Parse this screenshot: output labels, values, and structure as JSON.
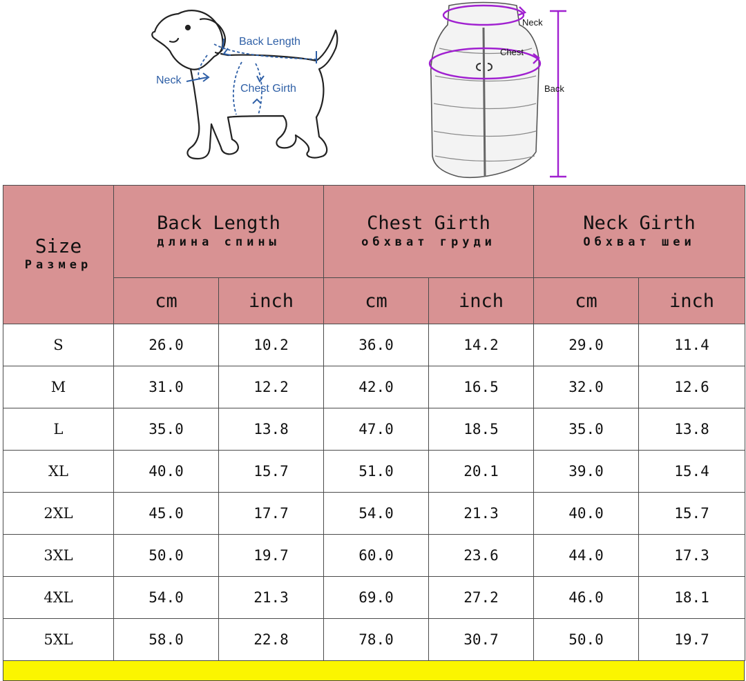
{
  "illustration": {
    "dog_labels": {
      "back_length": "Back Length",
      "neck": "Neck",
      "chest_girth": "Chest Girth"
    },
    "vest_labels": {
      "neck": "Neck",
      "chest": "Chest",
      "back": "Back"
    },
    "dog_arrow_color": "#2e5fa6",
    "vest_arrow_color": "#a020d0"
  },
  "table": {
    "header_color": "#d89293",
    "size_header": {
      "en": "Size",
      "ru": "Размер"
    },
    "groups": [
      {
        "en": "Back Length",
        "ru": "длина спины"
      },
      {
        "en": "Chest Girth",
        "ru": "обхват груди"
      },
      {
        "en": "Neck Girth",
        "ru": "Обхват шеи"
      }
    ],
    "units": [
      "cm",
      "inch",
      "cm",
      "inch",
      "cm",
      "inch"
    ],
    "rows": [
      [
        "S",
        "26.0",
        "10.2",
        "36.0",
        "14.2",
        "29.0",
        "11.4"
      ],
      [
        "M",
        "31.0",
        "12.2",
        "42.0",
        "16.5",
        "32.0",
        "12.6"
      ],
      [
        "L",
        "35.0",
        "13.8",
        "47.0",
        "18.5",
        "35.0",
        "13.8"
      ],
      [
        "XL",
        "40.0",
        "15.7",
        "51.0",
        "20.1",
        "39.0",
        "15.4"
      ],
      [
        "2XL",
        "45.0",
        "17.7",
        "54.0",
        "21.3",
        "40.0",
        "15.7"
      ],
      [
        "3XL",
        "50.0",
        "19.7",
        "60.0",
        "23.6",
        "44.0",
        "17.3"
      ],
      [
        "4XL",
        "54.0",
        "21.3",
        "69.0",
        "27.2",
        "46.0",
        "18.1"
      ],
      [
        "5XL",
        "58.0",
        "22.8",
        "78.0",
        "30.7",
        "50.0",
        "19.7"
      ]
    ]
  },
  "note": {
    "color": "#fbf500",
    "text": ""
  }
}
